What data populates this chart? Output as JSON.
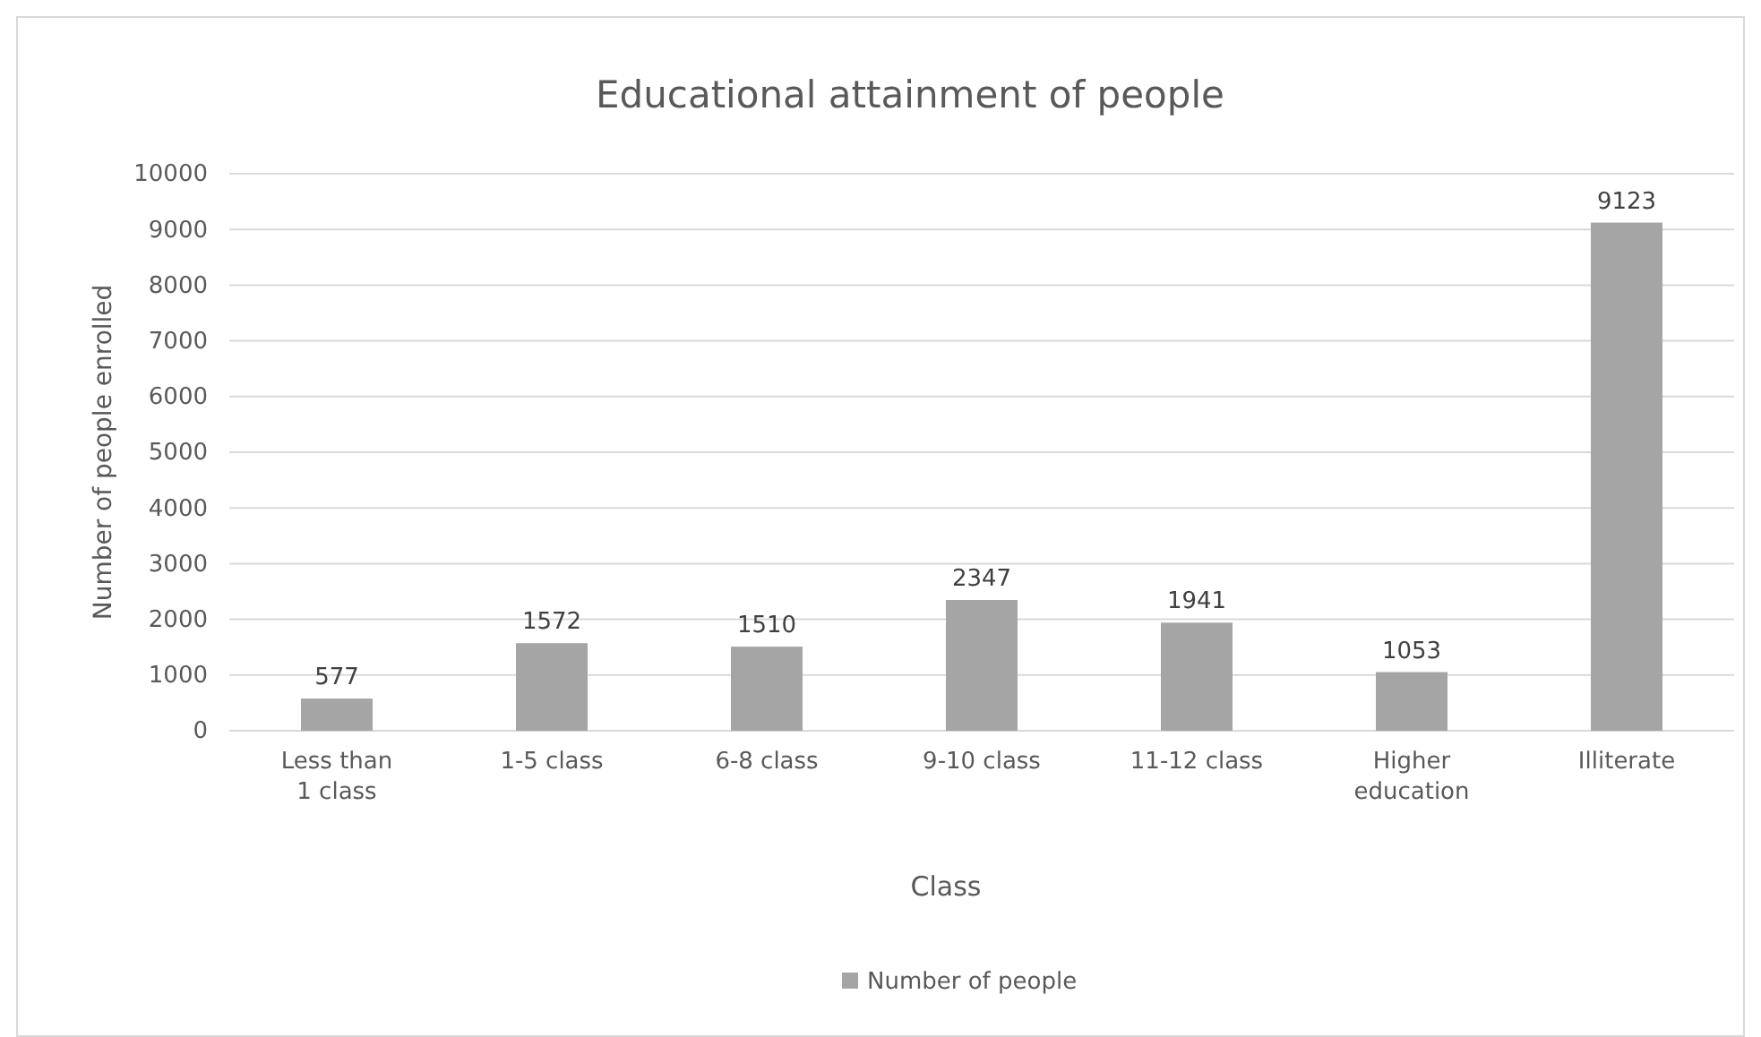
{
  "chart_data": {
    "type": "bar",
    "title": "Educational attainment of people",
    "xlabel": "Class",
    "ylabel": "Number of people enrolled",
    "categories": [
      "Less than 1 class",
      "1-5 class",
      "6-8 class",
      "9-10 class",
      "11-12 class",
      "Higher education",
      "Illiterate"
    ],
    "series": [
      {
        "name": "Number of people",
        "color": "#a5a5a5",
        "values": [
          577,
          1572,
          1510,
          2347,
          1941,
          1053,
          9123
        ]
      }
    ],
    "ylim": [
      0,
      10000
    ],
    "yticks": [
      0,
      1000,
      2000,
      3000,
      4000,
      5000,
      6000,
      7000,
      8000,
      9000,
      10000
    ],
    "grid": "y",
    "legend": "bottom",
    "data_labels": true
  }
}
